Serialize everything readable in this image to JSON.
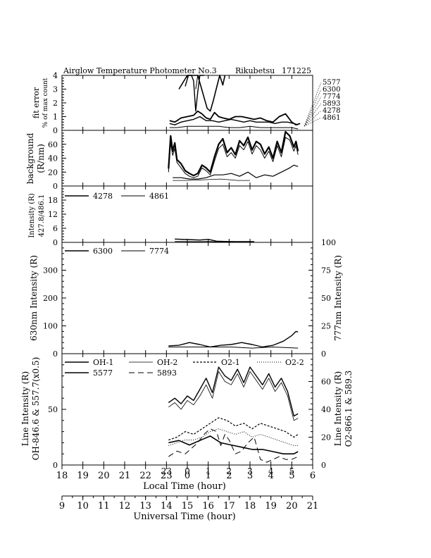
{
  "header": {
    "title": "Airglow Temperature Photometer No.3",
    "site": "Rikubetsu",
    "date": "171225"
  },
  "chart_data": [
    {
      "id": "fit_error",
      "type": "line",
      "ylabel_lines": [
        "fit error",
        "% of max count"
      ],
      "ylim": [
        0,
        4
      ],
      "yticks": [
        0,
        1,
        2,
        3,
        4
      ],
      "line_labels": [
        "5577",
        "6300",
        "7774",
        "5893",
        "4278",
        "4861"
      ],
      "series": [
        {
          "name": "5577",
          "x": [
            23.6,
            24.0,
            24.3,
            24.5,
            24.65,
            24.8,
            24.95,
            25.1,
            25.25,
            25.4,
            25.55,
            25.7,
            25.8
          ],
          "y": [
            3.0,
            4.2,
            4.5,
            4.0,
            3.2,
            2.4,
            1.6,
            1.4,
            2.2,
            3.1,
            4.6,
            3.3,
            4.4
          ]
        },
        {
          "name": "6300",
          "x": [
            23.9,
            24.05,
            24.2,
            24.3,
            24.4,
            24.5,
            24.6,
            24.8
          ],
          "y": [
            3.2,
            4.4,
            4.5,
            3.6,
            1.4,
            2.8,
            4.5,
            4.3
          ]
        },
        {
          "name": "7774",
          "x": [
            24.4,
            24.5,
            24.6
          ],
          "y": [
            3.0,
            4.3,
            3.8
          ]
        },
        {
          "name": "5893",
          "x": [
            23.15,
            23.4,
            23.7,
            24.0,
            24.3,
            24.5,
            24.7,
            24.9,
            25.1,
            25.3,
            25.5,
            25.7,
            26.0,
            26.3,
            26.6,
            26.9,
            27.2,
            27.5,
            27.8,
            28.1,
            28.4,
            28.7,
            29.0,
            29.2,
            29.4
          ],
          "y": [
            0.7,
            0.6,
            0.9,
            1.0,
            1.1,
            1.4,
            1.2,
            0.9,
            0.8,
            1.3,
            1.0,
            0.9,
            0.8,
            1.0,
            1.0,
            0.9,
            0.8,
            0.9,
            0.7,
            0.6,
            1.0,
            1.2,
            0.6,
            0.4,
            0.5
          ]
        },
        {
          "name": "4278",
          "x": [
            23.15,
            23.4,
            23.7,
            24.0,
            24.3,
            24.6,
            24.9,
            25.2,
            25.5,
            25.8,
            26.1,
            26.4,
            26.7,
            27.0,
            27.3,
            27.6,
            27.9,
            28.2,
            28.5,
            28.8,
            29.1,
            29.3
          ],
          "y": [
            0.5,
            0.4,
            0.6,
            0.7,
            0.8,
            1.0,
            0.7,
            0.7,
            0.6,
            0.7,
            0.8,
            0.7,
            0.6,
            0.7,
            0.6,
            0.6,
            0.6,
            0.5,
            0.6,
            0.6,
            0.5,
            0.4
          ]
        },
        {
          "name": "4861",
          "x": [
            23.15,
            23.5,
            24.0,
            24.5,
            25.0,
            25.5,
            26.0,
            26.5,
            27.0,
            27.5,
            28.0,
            28.5,
            29.0,
            29.3
          ],
          "y": [
            0.2,
            0.2,
            0.3,
            0.3,
            0.3,
            0.3,
            0.2,
            0.2,
            0.3,
            0.2,
            0.2,
            0.2,
            0.2,
            0.1
          ]
        }
      ]
    },
    {
      "id": "background",
      "type": "line",
      "ylabel_lines": [
        "background",
        "(R/nm)"
      ],
      "ylim": [
        0,
        80
      ],
      "yticks": [
        0,
        20,
        40,
        60
      ],
      "series": [
        {
          "name": "a",
          "x": [
            23.1,
            23.2,
            23.3,
            23.4,
            23.5,
            23.7,
            23.9,
            24.1,
            24.3,
            24.5,
            24.7,
            24.9,
            25.1,
            25.3,
            25.5,
            25.7,
            25.9,
            26.1,
            26.3,
            26.5,
            26.7,
            26.9,
            27.1,
            27.3,
            27.5,
            27.7,
            27.9,
            28.1,
            28.3,
            28.5,
            28.7,
            28.9,
            29.1,
            29.2,
            29.3
          ],
          "y": [
            25,
            72,
            50,
            62,
            38,
            32,
            22,
            18,
            15,
            18,
            30,
            26,
            20,
            42,
            60,
            68,
            48,
            55,
            45,
            65,
            58,
            70,
            52,
            64,
            60,
            46,
            56,
            40,
            64,
            48,
            78,
            72,
            56,
            64,
            50
          ]
        },
        {
          "name": "b",
          "x": [
            23.1,
            23.2,
            23.3,
            23.4,
            23.5,
            23.7,
            23.9,
            24.1,
            24.3,
            24.5,
            24.7,
            24.9,
            25.1,
            25.3,
            25.5,
            25.7,
            25.9,
            26.1,
            26.3,
            26.5,
            26.7,
            26.9,
            27.1,
            27.3,
            27.5,
            27.7,
            27.9,
            28.1,
            28.3,
            28.5,
            28.7,
            28.9,
            29.1,
            29.2,
            29.3
          ],
          "y": [
            20,
            62,
            44,
            54,
            34,
            26,
            18,
            14,
            12,
            14,
            26,
            22,
            16,
            36,
            54,
            60,
            42,
            48,
            40,
            58,
            52,
            64,
            46,
            58,
            52,
            40,
            50,
            35,
            58,
            42,
            70,
            66,
            50,
            58,
            45
          ]
        },
        {
          "name": "c",
          "x": [
            23.3,
            23.7,
            24.1,
            24.5,
            24.9,
            25.3,
            25.7,
            26.1,
            26.5,
            26.9,
            27.3,
            27.7,
            28.1,
            28.5,
            28.9,
            29.1,
            29.3
          ],
          "y": [
            12,
            12,
            10,
            10,
            12,
            16,
            16,
            18,
            14,
            20,
            12,
            16,
            14,
            20,
            26,
            30,
            28
          ]
        },
        {
          "name": "d",
          "x": [
            23.3,
            24.0,
            24.8,
            25.6,
            26.4,
            27.0
          ],
          "y": [
            8,
            8,
            9,
            10,
            8,
            8
          ]
        }
      ]
    },
    {
      "id": "hb_intensity",
      "type": "line",
      "ylabel_lines": [
        "Intensity (R)",
        "427.8/486.1"
      ],
      "ylim": [
        0,
        24
      ],
      "yticks": [
        0,
        6,
        12,
        18
      ],
      "legend": [
        "4278",
        "4861"
      ],
      "series": [
        {
          "name": "4278",
          "x": [
            23.4,
            24.0,
            24.6,
            25.0,
            25.4,
            25.8,
            26.3,
            26.8,
            27.2
          ],
          "y": [
            1.4,
            1.2,
            1.0,
            1.3,
            0.5,
            0.4,
            0.3,
            0.3,
            0.3
          ]
        },
        {
          "name": "4861",
          "x": [
            23.4,
            24.0,
            24.6,
            25.0,
            25.4,
            25.8,
            26.3,
            26.8,
            27.2
          ],
          "y": [
            0.4,
            0.3,
            0.3,
            0.4,
            0.2,
            0.2,
            0.1,
            0.1,
            0.1
          ]
        }
      ]
    },
    {
      "id": "red_line",
      "type": "line",
      "ylabel_left": "630nm Intensity (R)",
      "ylabel_right": "777nm Intensity (R)",
      "ylim_left": [
        0,
        400
      ],
      "yticks_left": [
        0,
        100,
        200,
        300
      ],
      "ylim_right": [
        0,
        100
      ],
      "yticks_right": [
        0,
        25,
        50,
        75,
        100
      ],
      "legend": [
        "6300",
        "7774"
      ],
      "series": [
        {
          "name": "6300",
          "axis": "left",
          "x": [
            23.1,
            23.6,
            24.1,
            24.6,
            25.1,
            25.6,
            26.1,
            26.6,
            27.1,
            27.6,
            28.1,
            28.6,
            29.0,
            29.2,
            29.3
          ],
          "y": [
            28,
            30,
            40,
            33,
            24,
            30,
            33,
            40,
            33,
            24,
            30,
            45,
            65,
            80,
            78
          ]
        },
        {
          "name": "7774",
          "axis": "right",
          "x": [
            23.1,
            24.1,
            25.1,
            26.1,
            27.1,
            28.1,
            29.3
          ],
          "y": [
            6,
            6,
            6,
            6,
            5,
            6,
            5
          ]
        }
      ]
    },
    {
      "id": "line_intensity",
      "type": "line",
      "ylabel_left_lines": [
        "Line Intensity (R)",
        "OH-846.6 & 557.7(x0.5)"
      ],
      "ylabel_right_lines": [
        "Line Intensity (R)",
        "O2-866.1 & 589.3"
      ],
      "ylim_left": [
        0,
        100
      ],
      "yticks_left": [
        0,
        50
      ],
      "ylim_right": [
        0,
        80
      ],
      "yticks_right": [
        0,
        20,
        40,
        60
      ],
      "legend": [
        "OH-1",
        "OH-2",
        "O2-1",
        "O2-2",
        "5577",
        "5893"
      ],
      "series": [
        {
          "name": "OH-1",
          "axis": "left",
          "x": [
            23.1,
            23.4,
            23.7,
            24.0,
            24.3,
            24.6,
            24.9,
            25.2,
            25.5,
            25.8,
            26.1,
            26.4,
            26.7,
            27.0,
            27.3,
            27.6,
            27.9,
            28.2,
            28.5,
            28.8,
            29.1,
            29.3
          ],
          "y": [
            56,
            60,
            55,
            62,
            58,
            68,
            78,
            65,
            88,
            80,
            76,
            86,
            74,
            88,
            80,
            72,
            82,
            70,
            78,
            66,
            44,
            46
          ]
        },
        {
          "name": "OH-2",
          "axis": "left",
          "x": [
            23.1,
            23.4,
            23.7,
            24.0,
            24.3,
            24.6,
            24.9,
            25.2,
            25.5,
            25.8,
            26.1,
            26.4,
            26.7,
            27.0,
            27.3,
            27.6,
            27.9,
            28.2,
            28.5,
            28.8,
            29.1,
            29.3
          ],
          "y": [
            52,
            56,
            50,
            58,
            54,
            62,
            72,
            60,
            84,
            75,
            72,
            82,
            70,
            84,
            76,
            68,
            78,
            66,
            74,
            62,
            40,
            42
          ]
        },
        {
          "name": "O2-1",
          "axis": "right",
          "x": [
            23.1,
            23.5,
            23.9,
            24.3,
            24.7,
            25.1,
            25.5,
            25.9,
            26.3,
            26.7,
            27.1,
            27.5,
            27.9,
            28.3,
            28.7,
            29.1,
            29.3
          ],
          "y": [
            18,
            20,
            24,
            22,
            26,
            30,
            34,
            32,
            28,
            30,
            26,
            30,
            28,
            26,
            24,
            20,
            22
          ]
        },
        {
          "name": "O2-2",
          "axis": "right",
          "x": [
            23.1,
            23.5,
            23.9,
            24.3,
            24.7,
            25.1,
            25.5,
            25.9,
            26.3,
            26.7,
            27.1,
            27.5,
            27.9,
            28.3,
            28.7,
            29.1,
            29.3
          ],
          "y": [
            14,
            16,
            18,
            18,
            20,
            24,
            26,
            24,
            22,
            24,
            20,
            22,
            20,
            18,
            16,
            14,
            14
          ]
        },
        {
          "name": "5577",
          "axis": "left",
          "x": [
            23.1,
            23.6,
            24.1,
            24.6,
            25.1,
            25.6,
            26.1,
            26.6,
            27.1,
            27.6,
            28.1,
            28.6,
            29.1,
            29.3
          ],
          "y": [
            20,
            22,
            18,
            22,
            26,
            20,
            18,
            16,
            14,
            14,
            12,
            10,
            10,
            12
          ]
        },
        {
          "name": "5893",
          "axis": "right",
          "x": [
            23.1,
            23.5,
            23.9,
            24.2,
            24.5,
            24.8,
            25.1,
            25.4,
            25.6,
            25.8,
            26.0,
            26.3,
            26.6,
            26.9,
            27.2,
            27.5,
            27.8,
            28.1,
            28.4,
            28.7,
            29.0,
            29.3
          ],
          "y": [
            6,
            10,
            8,
            12,
            16,
            22,
            26,
            24,
            14,
            22,
            18,
            8,
            10,
            16,
            20,
            4,
            2,
            4,
            6,
            4,
            4,
            6
          ]
        }
      ]
    }
  ],
  "x_axes": {
    "local_time": {
      "label": "Local Time (hour)",
      "range": [
        18,
        30
      ],
      "ticks": [
        18,
        19,
        20,
        21,
        22,
        23,
        24,
        25,
        26,
        27,
        28,
        29,
        30
      ],
      "tick_labels": [
        "18",
        "19",
        "20",
        "21",
        "22",
        "23",
        "0",
        "1",
        "2",
        "3",
        "4",
        "5",
        "6"
      ]
    },
    "universal_time": {
      "label": "Universal Time (hour)",
      "range": [
        9,
        21
      ],
      "ticks": [
        9,
        10,
        11,
        12,
        13,
        14,
        15,
        16,
        17,
        18,
        19,
        20,
        21
      ],
      "tick_labels": [
        "9",
        "10",
        "11",
        "12",
        "13",
        "14",
        "15",
        "16",
        "17",
        "18",
        "19",
        "20",
        "21"
      ]
    },
    "panel_top_labels": [
      "23",
      "0",
      "1",
      "2",
      "3",
      "4",
      "5"
    ]
  },
  "colors": {
    "ink": "#000000",
    "background": "#ffffff"
  }
}
